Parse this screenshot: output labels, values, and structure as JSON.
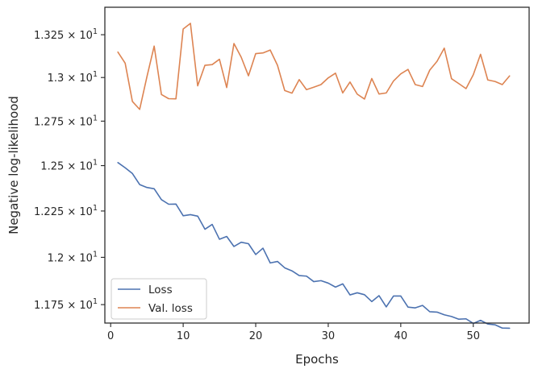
{
  "chart_data": {
    "type": "line",
    "xlabel": "Epochs",
    "ylabel": "Negative log-likelihood",
    "xlim": [
      -0.8,
      57.7
    ],
    "ylim": [
      11.654,
      13.413
    ],
    "y_scale": "log",
    "grid": false,
    "legend_position": "lower-left",
    "x_ticks": [
      0,
      10,
      20,
      30,
      40,
      50
    ],
    "x_tick_labels": [
      "0",
      "10",
      "20",
      "30",
      "40",
      "50"
    ],
    "y_ticks": [
      11.75,
      12.0,
      12.25,
      12.5,
      12.75,
      13.0,
      13.25
    ],
    "y_tick_labels": [
      {
        "mantissa": "1.175",
        "exp": "1"
      },
      {
        "mantissa": "1.2",
        "exp": "1"
      },
      {
        "mantissa": "1.225",
        "exp": "1"
      },
      {
        "mantissa": "1.25",
        "exp": "1"
      },
      {
        "mantissa": "1.275",
        "exp": "1"
      },
      {
        "mantissa": "1.3",
        "exp": "1"
      },
      {
        "mantissa": "1.325",
        "exp": "1"
      }
    ],
    "x": [
      1,
      2,
      3,
      4,
      5,
      6,
      7,
      8,
      9,
      10,
      11,
      12,
      13,
      14,
      15,
      16,
      17,
      18,
      19,
      20,
      21,
      22,
      23,
      24,
      25,
      26,
      27,
      28,
      29,
      30,
      31,
      32,
      33,
      34,
      35,
      36,
      37,
      38,
      39,
      40,
      41,
      42,
      43,
      44,
      45,
      46,
      47,
      48,
      49,
      50,
      51,
      52,
      53,
      54,
      55
    ],
    "series": [
      {
        "name": "Loss",
        "color": "#4c72b0",
        "values": [
          12.517,
          12.488,
          12.456,
          12.395,
          12.379,
          12.372,
          12.312,
          12.287,
          12.288,
          12.224,
          12.23,
          12.222,
          12.151,
          12.177,
          12.097,
          12.112,
          12.058,
          12.081,
          12.073,
          12.015,
          12.049,
          11.97,
          11.978,
          11.944,
          11.928,
          11.903,
          11.9,
          11.871,
          11.876,
          11.863,
          11.842,
          11.859,
          11.801,
          11.812,
          11.802,
          11.766,
          11.797,
          11.738,
          11.795,
          11.795,
          11.737,
          11.733,
          11.746,
          11.713,
          11.711,
          11.697,
          11.688,
          11.674,
          11.676,
          11.652,
          11.668,
          11.649,
          11.645,
          11.628,
          11.627
        ]
      },
      {
        "name": "Val. loss",
        "color": "#dd8452",
        "values": [
          13.148,
          13.083,
          12.862,
          12.817,
          13.004,
          13.183,
          12.902,
          12.878,
          12.877,
          13.284,
          13.317,
          12.952,
          13.071,
          13.075,
          13.106,
          12.942,
          13.198,
          13.118,
          13.01,
          13.139,
          13.143,
          13.16,
          13.071,
          12.925,
          12.91,
          12.988,
          12.93,
          12.944,
          12.959,
          12.998,
          13.025,
          12.911,
          12.974,
          12.904,
          12.876,
          12.994,
          12.905,
          12.911,
          12.98,
          13.021,
          13.047,
          12.959,
          12.948,
          13.043,
          13.094,
          13.171,
          12.993,
          12.965,
          12.936,
          13.016,
          13.135,
          12.986,
          12.977,
          12.959,
          13.009
        ]
      }
    ]
  }
}
